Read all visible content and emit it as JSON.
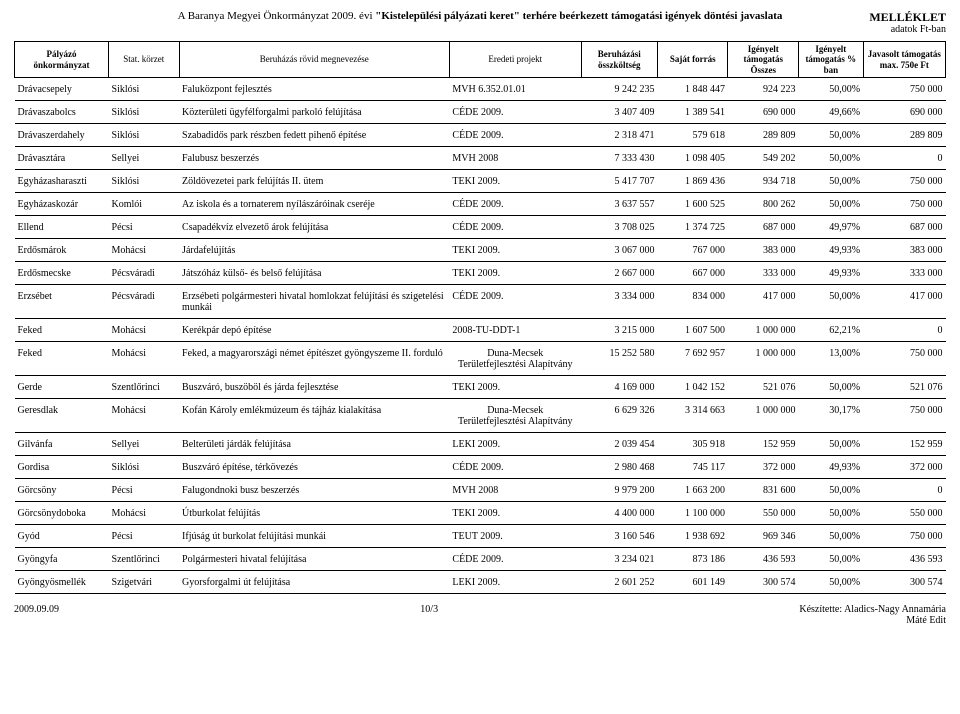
{
  "title_prefix": "A Baranya Megyei Önkormányzat 2009. évi ",
  "title_bold": "\"Kistelepülési pályázati keret\" terhére beérkezett támogatási igények döntési javaslata",
  "mellek": "MELLÉKLET",
  "adatok": "adatok Ft-ban",
  "columns": {
    "c0": "Pályázó önkormányzat",
    "c1": "Stat. körzet",
    "c2": "Beruházás rövid megnevezése",
    "c3": "Eredeti projekt",
    "c4": "Beruházási összköltség",
    "c5": "Saját forrás",
    "c6": "Igényelt támogatás Összes",
    "c7": "Igényelt támogatás % ban",
    "c8": "Javasolt támogatás max. 750e Ft"
  },
  "col_widths": [
    "80",
    "60",
    "230",
    "112",
    "65",
    "60",
    "60",
    "55",
    "70"
  ],
  "rows": [
    {
      "c0": "Drávacsepely",
      "c1": "Siklósi",
      "c2": "Faluközpont fejlesztés",
      "c3": "MVH 6.352.01.01",
      "c4": "9 242 235",
      "c5": "1 848 447",
      "c6": "924 223",
      "c7": "50,00%",
      "c8": "750 000"
    },
    {
      "c0": "Drávaszabolcs",
      "c1": "Siklósi",
      "c2": "Közterületi ügyfélforgalmi parkoló felújítása",
      "c3": "CÉDE 2009.",
      "c4": "3 407 409",
      "c5": "1 389 541",
      "c6": "690 000",
      "c7": "49,66%",
      "c8": "690 000"
    },
    {
      "c0": "Drávaszerdahely",
      "c1": "Siklósi",
      "c2": "Szabadidős park részben fedett pihenő építése",
      "c3": "CÉDE 2009.",
      "c4": "2 318 471",
      "c5": "579 618",
      "c6": "289 809",
      "c7": "50,00%",
      "c8": "289 809"
    },
    {
      "c0": "Drávasztára",
      "c1": "Sellyei",
      "c2": "Falubusz beszerzés",
      "c3": "MVH 2008",
      "c4": "7 333 430",
      "c5": "1 098 405",
      "c6": "549 202",
      "c7": "50,00%",
      "c8": "0"
    },
    {
      "c0": "Egyházasharaszti",
      "c1": "Siklósi",
      "c2": "Zöldövezetei park felújítás II. ütem",
      "c3": "TEKI 2009.",
      "c4": "5 417 707",
      "c5": "1 869 436",
      "c6": "934 718",
      "c7": "50,00%",
      "c8": "750 000"
    },
    {
      "c0": "Egyházaskozár",
      "c1": "Komlói",
      "c2": "Az iskola és a tornaterem nyílászáróinak cseréje",
      "c3": "CÉDE 2009.",
      "c4": "3 637 557",
      "c5": "1 600 525",
      "c6": "800 262",
      "c7": "50,00%",
      "c8": "750 000"
    },
    {
      "c0": "Ellend",
      "c1": "Pécsi",
      "c2": "Csapadékvíz elvezető árok felújítása",
      "c3": "CÉDE 2009.",
      "c4": "3 708 025",
      "c5": "1 374 725",
      "c6": "687 000",
      "c7": "49,97%",
      "c8": "687 000"
    },
    {
      "c0": "Erdősmárok",
      "c1": "Mohácsi",
      "c2": "Járdafelújítás",
      "c3": "TEKI 2009.",
      "c4": "3 067 000",
      "c5": "767 000",
      "c6": "383 000",
      "c7": "49,93%",
      "c8": "383 000"
    },
    {
      "c0": "Erdősmecske",
      "c1": "Pécsváradi",
      "c2": "Játszóház külső- és belső felújítása",
      "c3": "TEKI 2009.",
      "c4": "2 667 000",
      "c5": "667 000",
      "c6": "333 000",
      "c7": "49,93%",
      "c8": "333 000"
    },
    {
      "c0": "Erzsébet",
      "c1": "Pécsváradi",
      "c2": "Erzsébeti polgármesteri hivatal homlokzat felújítási és szigetelési munkái",
      "c3": "CÉDE 2009.",
      "c4": "3 334 000",
      "c5": "834 000",
      "c6": "417 000",
      "c7": "50,00%",
      "c8": "417 000"
    },
    {
      "c0": "Feked",
      "c1": "Mohácsi",
      "c2": "Kerékpár depó építése",
      "c3": "2008-TU-DDT-1",
      "c4": "3 215 000",
      "c5": "1 607 500",
      "c6": "1 000 000",
      "c7": "62,21%",
      "c8": "0"
    },
    {
      "c0": "Feked",
      "c1": "Mohácsi",
      "c2": "Feked, a magyarországi német építészet gyöngyszeme II. forduló",
      "c3": "Duna-Mecsek Területfejlesztési Alapítvány",
      "c4": "15 252 580",
      "c5": "7 692 957",
      "c6": "1 000 000",
      "c7": "13,00%",
      "c8": "750 000"
    },
    {
      "c0": "Gerde",
      "c1": "Szentlőrinci",
      "c2": "Buszváró, buszöböl és járda fejlesztése",
      "c3": "TEKI 2009.",
      "c4": "4 169 000",
      "c5": "1 042 152",
      "c6": "521 076",
      "c7": "50,00%",
      "c8": "521 076"
    },
    {
      "c0": "Geresdlak",
      "c1": "Mohácsi",
      "c2": "Kofán Károly emlékmúzeum és tájház kialakítása",
      "c3": "Duna-Mecsek Területfejlesztési Alapítvány",
      "c4": "6 629 326",
      "c5": "3 314 663",
      "c6": "1 000 000",
      "c7": "30,17%",
      "c8": "750 000"
    },
    {
      "c0": "Gilvánfa",
      "c1": "Sellyei",
      "c2": "Belterületi járdák felújítása",
      "c3": "LEKI 2009.",
      "c4": "2 039 454",
      "c5": "305 918",
      "c6": "152 959",
      "c7": "50,00%",
      "c8": "152 959"
    },
    {
      "c0": "Gordisa",
      "c1": "Siklósi",
      "c2": "Buszváró építése, térkövezés",
      "c3": "CÉDE 2009.",
      "c4": "2 980 468",
      "c5": "745 117",
      "c6": "372 000",
      "c7": "49,93%",
      "c8": "372 000"
    },
    {
      "c0": "Görcsöny",
      "c1": "Pécsi",
      "c2": "Falugondnoki busz beszerzés",
      "c3": "MVH 2008",
      "c4": "9 979 200",
      "c5": "1 663 200",
      "c6": "831 600",
      "c7": "50,00%",
      "c8": "0"
    },
    {
      "c0": "Görcsönydoboka",
      "c1": "Mohácsi",
      "c2": "Útburkolat felújítás",
      "c3": "TEKI 2009.",
      "c4": "4 400 000",
      "c5": "1 100 000",
      "c6": "550 000",
      "c7": "50,00%",
      "c8": "550 000"
    },
    {
      "c0": "Gyód",
      "c1": "Pécsi",
      "c2": "Ifjúság út burkolat felújítási munkái",
      "c3": "TEUT 2009.",
      "c4": "3 160 546",
      "c5": "1 938 692",
      "c6": "969 346",
      "c7": "50,00%",
      "c8": "750 000"
    },
    {
      "c0": "Gyöngyfa",
      "c1": "Szentlőrinci",
      "c2": "Polgármesteri hivatal felújítása",
      "c3": "CÉDE 2009.",
      "c4": "3 234 021",
      "c5": "873 186",
      "c6": "436 593",
      "c7": "50,00%",
      "c8": "436 593"
    },
    {
      "c0": "Gyöngyösmellék",
      "c1": "Szigetvári",
      "c2": "Gyorsforgalmi út felújítása",
      "c3": "LEKI 2009.",
      "c4": "2 601 252",
      "c5": "601 149",
      "c6": "300 574",
      "c7": "50,00%",
      "c8": "300 574"
    }
  ],
  "footer": {
    "date": "2009.09.09",
    "page": "10/3",
    "prepared": "Készítette: Aladics-Nagy Annamária",
    "mate": "Máté Edit"
  }
}
